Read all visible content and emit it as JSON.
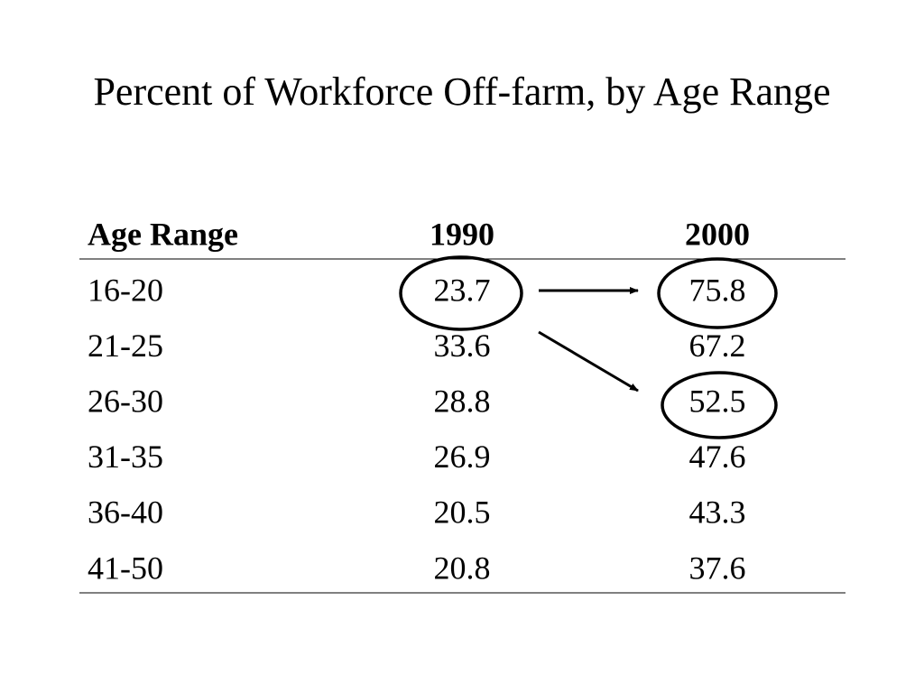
{
  "title": "Percent of Workforce Off-farm, by Age Range",
  "table": {
    "header": [
      "Age Range",
      "1990",
      "2000"
    ],
    "rows": [
      [
        "16-20",
        "23.7",
        "75.8"
      ],
      [
        "21-25",
        "33.6",
        "67.2"
      ],
      [
        "26-30",
        "28.8",
        "52.5"
      ],
      [
        "31-35",
        "26.9",
        "47.6"
      ],
      [
        "36-40",
        "20.5",
        "43.3"
      ],
      [
        "41-50",
        "20.8",
        "37.6"
      ]
    ]
  }
}
